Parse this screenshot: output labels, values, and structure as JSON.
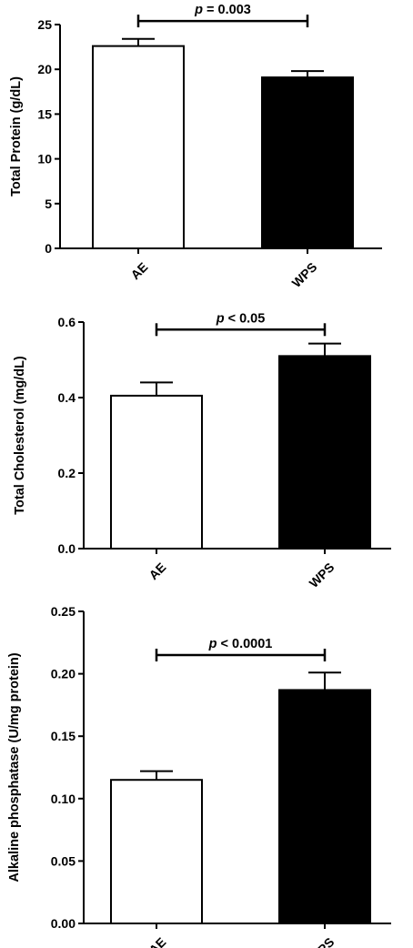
{
  "chart_data": [
    {
      "type": "bar",
      "categories": [
        "AE",
        "WPS"
      ],
      "values": [
        22.6,
        19.1
      ],
      "errors": [
        0.8,
        0.7
      ],
      "fills": [
        "#ffffff",
        "#000000"
      ],
      "ylabel": "Total Protein (g/dL)",
      "ylim": [
        0,
        25
      ],
      "yticks": [
        0,
        5,
        10,
        15,
        20,
        25
      ],
      "ytick_labels": [
        "0",
        "5",
        "10",
        "15",
        "20",
        "25"
      ],
      "significance": {
        "symbol": "p",
        "text": " = 0.003",
        "bracket_y": 25.4
      }
    },
    {
      "type": "bar",
      "categories": [
        "AE",
        "WPS"
      ],
      "values": [
        0.405,
        0.51
      ],
      "errors": [
        0.035,
        0.033
      ],
      "fills": [
        "#ffffff",
        "#000000"
      ],
      "ylabel": "Total Cholesterol (mg/dL)",
      "ylim": [
        0,
        0.6
      ],
      "yticks": [
        0,
        0.2,
        0.4,
        0.6
      ],
      "ytick_labels": [
        "0.0",
        "0.2",
        "0.4",
        "0.6"
      ],
      "significance": {
        "symbol": "p",
        "text": " < 0.05",
        "bracket_y": 0.58
      }
    },
    {
      "type": "bar",
      "categories": [
        "AE",
        "WPS"
      ],
      "values": [
        0.115,
        0.187
      ],
      "errors": [
        0.007,
        0.014
      ],
      "fills": [
        "#ffffff",
        "#000000"
      ],
      "ylabel": "Alkaline phosphatase (U/mg protein)",
      "ylim": [
        0,
        0.25
      ],
      "yticks": [
        0,
        0.05,
        0.1,
        0.15,
        0.2,
        0.25
      ],
      "ytick_labels": [
        "0.00",
        "0.05",
        "0.10",
        "0.15",
        "0.20",
        "0.25"
      ],
      "significance": {
        "symbol": "p",
        "text": " < 0.0001",
        "bracket_y": 0.215
      }
    }
  ]
}
